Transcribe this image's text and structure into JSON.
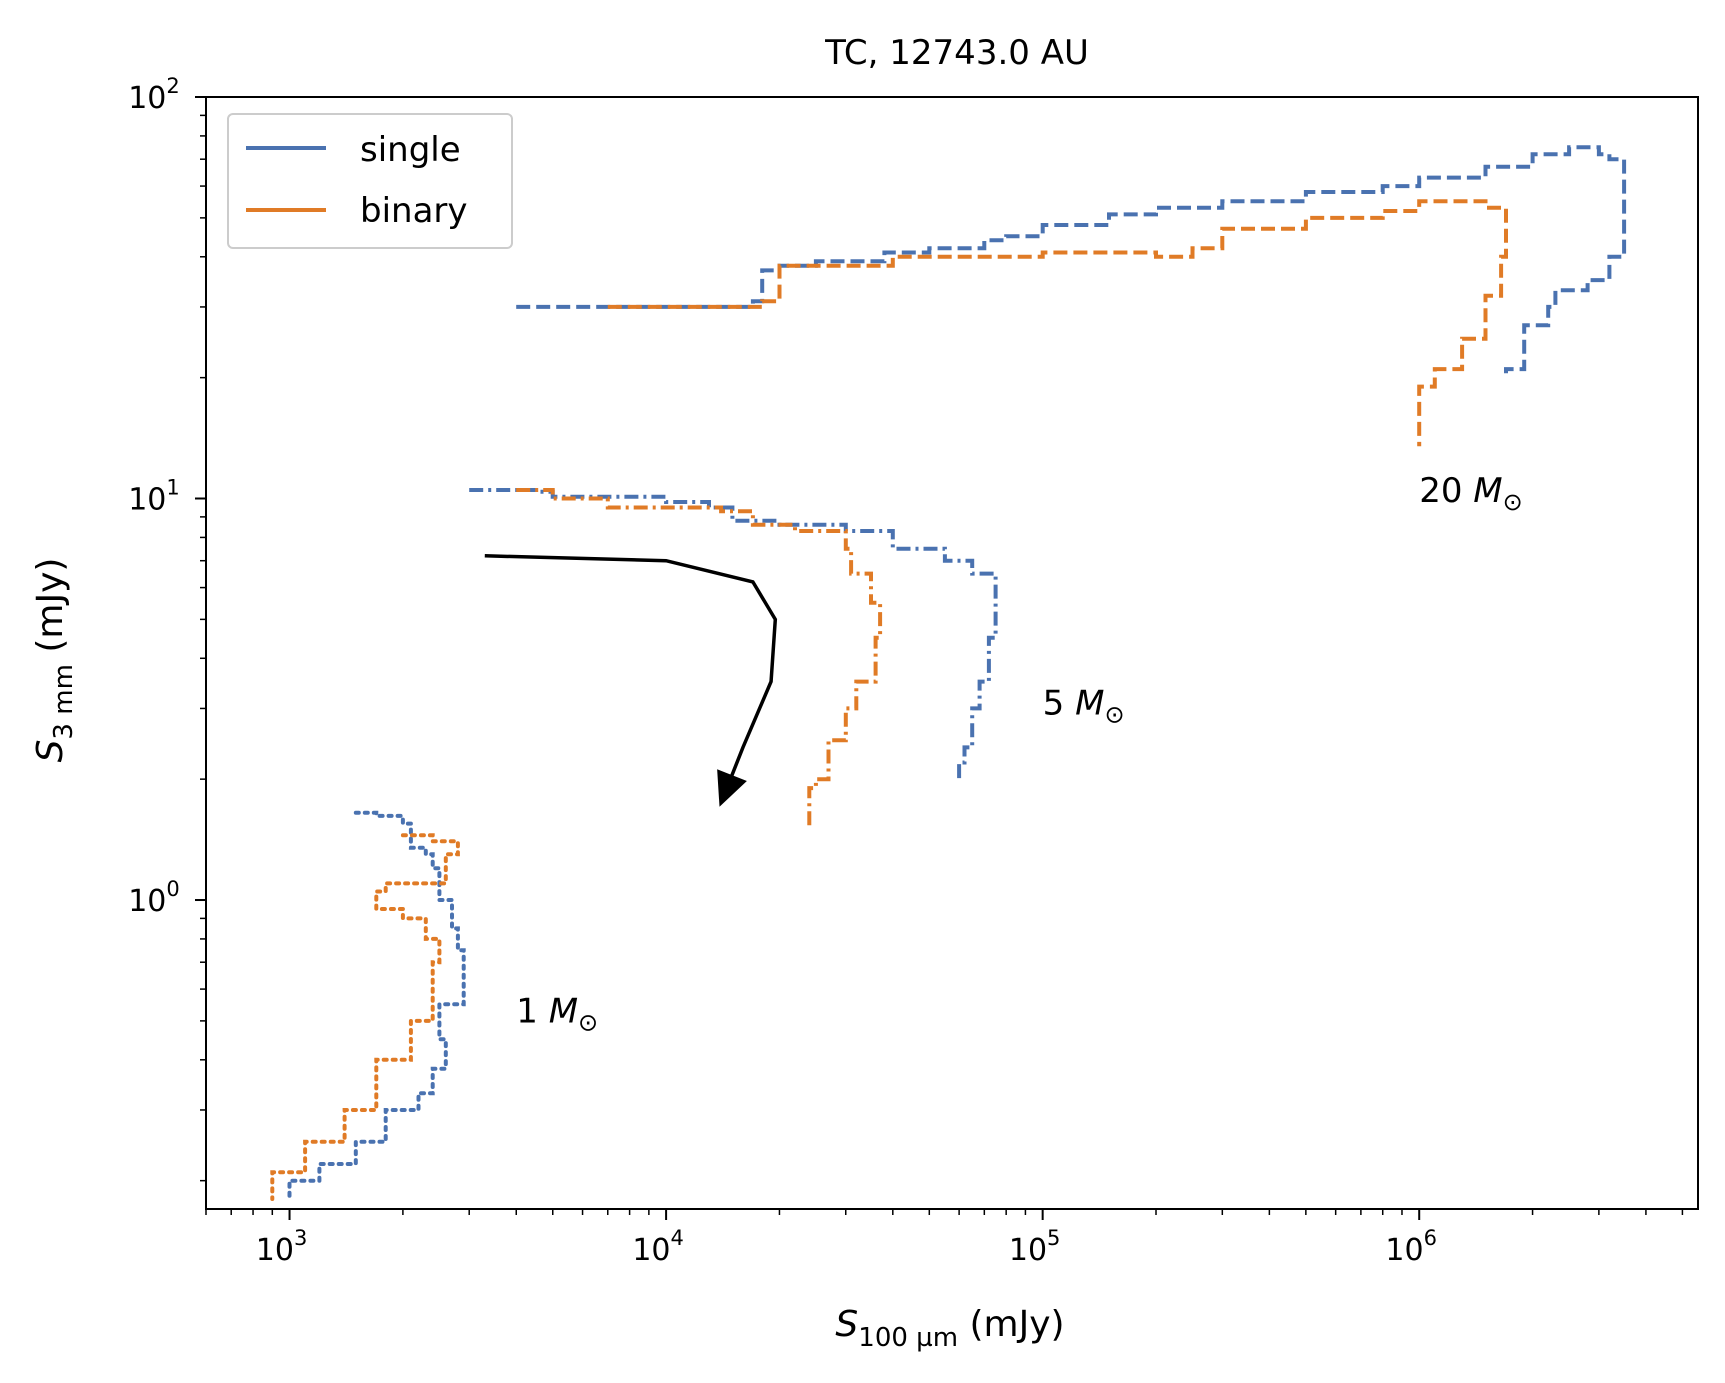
{
  "chart_data": {
    "type": "line",
    "title": "TC, 12743.0 AU",
    "xlabel": {
      "base": "S",
      "sub": "100 µm",
      "unit": " (mJy)"
    },
    "ylabel": {
      "base": "S",
      "sub": "3 mm",
      "unit": " (mJy)"
    },
    "x_scale": "log",
    "y_scale": "log",
    "xlim": [
      600,
      5500000
    ],
    "ylim": [
      0.17,
      100
    ],
    "x_major_ticks": [
      {
        "value": 1000,
        "label": "10",
        "exp": "3"
      },
      {
        "value": 10000,
        "label": "10",
        "exp": "4"
      },
      {
        "value": 100000,
        "label": "10",
        "exp": "5"
      },
      {
        "value": 1000000,
        "label": "10",
        "exp": "6"
      }
    ],
    "y_major_ticks": [
      {
        "value": 1,
        "label": "10",
        "exp": "0"
      },
      {
        "value": 10,
        "label": "10",
        "exp": "1"
      },
      {
        "value": 100,
        "label": "10",
        "exp": "2"
      }
    ],
    "grid": false,
    "legend": {
      "position": "top-left",
      "entries": [
        {
          "name": "single",
          "color": "#4a72b0"
        },
        {
          "name": "binary",
          "color": "#e07b26"
        }
      ]
    },
    "series": [
      {
        "name": "single",
        "group": "20 M☉",
        "color": "#4a72b0",
        "style": "dashed",
        "x": [
          4000,
          7000,
          10000,
          17000,
          18000,
          20000,
          25000,
          30000,
          38000,
          50000,
          70000,
          80000,
          100000,
          150000,
          200000,
          300000,
          500000,
          800000,
          1000000,
          1500000,
          2000000,
          2500000,
          3000000,
          3200000,
          3500000,
          3500000,
          3200000,
          2800000,
          2300000,
          2200000,
          1900000,
          1700000
        ],
        "y": [
          30,
          30,
          30,
          31,
          37,
          38,
          39,
          39,
          41,
          42,
          44,
          45,
          48,
          51,
          53,
          55,
          58,
          60,
          63,
          67,
          72,
          75,
          72,
          70,
          55,
          40,
          35,
          33,
          30,
          27,
          21,
          20.5
        ]
      },
      {
        "name": "binary",
        "group": "20 M☉",
        "color": "#e07b26",
        "style": "dashed",
        "x": [
          7000,
          10000,
          17000,
          18000,
          20000,
          30000,
          40000,
          60000,
          80000,
          100000,
          150000,
          200000,
          250000,
          300000,
          500000,
          800000,
          1000000,
          1200000,
          1500000,
          1700000,
          1700000,
          1650000,
          1500000,
          1300000,
          1100000,
          1000000,
          1000000
        ],
        "y": [
          30,
          30,
          30,
          31,
          38,
          38,
          40,
          40,
          40,
          41,
          41,
          40,
          42,
          47,
          50,
          52,
          55,
          55,
          53,
          50,
          40,
          32,
          25,
          21,
          19,
          16,
          13.5
        ]
      },
      {
        "name": "single",
        "group": "5 M☉",
        "color": "#4a72b0",
        "style": "dashdot",
        "x": [
          3000,
          4500,
          5000,
          8000,
          10000,
          13000,
          15000,
          20000,
          30000,
          40000,
          55000,
          65000,
          75000,
          75000,
          72000,
          68000,
          65000,
          62000,
          60000
        ],
        "y": [
          10.5,
          10.4,
          10.1,
          10.1,
          9.8,
          9.5,
          8.8,
          8.6,
          8.3,
          7.5,
          7.0,
          6.5,
          6.0,
          4.5,
          3.5,
          3.0,
          2.4,
          2.2,
          2.0
        ]
      },
      {
        "name": "binary",
        "group": "5 M☉",
        "color": "#e07b26",
        "style": "dashdot",
        "x": [
          4000,
          5000,
          7000,
          10000,
          14000,
          17000,
          22000,
          30000,
          31000,
          35000,
          37000,
          36000,
          32000,
          30000,
          27000,
          25000,
          24000,
          24000
        ],
        "y": [
          10.5,
          10.0,
          9.5,
          9.5,
          9.3,
          8.6,
          8.3,
          7.5,
          6.5,
          5.5,
          4.5,
          3.5,
          3.0,
          2.5,
          2.0,
          1.9,
          1.8,
          1.5
        ]
      },
      {
        "name": "single",
        "group": "1 M☉",
        "color": "#4a72b0",
        "style": "dotted",
        "x": [
          1500,
          1700,
          2000,
          2100,
          2300,
          2400,
          2500,
          2700,
          2800,
          2900,
          2900,
          2500,
          2600,
          2400,
          2200,
          1800,
          1500,
          1200,
          1000
        ],
        "y": [
          1.65,
          1.62,
          1.55,
          1.35,
          1.3,
          1.2,
          1.0,
          0.85,
          0.75,
          0.68,
          0.55,
          0.45,
          0.38,
          0.33,
          0.3,
          0.25,
          0.22,
          0.2,
          0.18
        ]
      },
      {
        "name": "binary",
        "group": "1 M☉",
        "color": "#e07b26",
        "style": "dotted",
        "x": [
          2000,
          2400,
          2800,
          2600,
          1800,
          1700,
          2000,
          2300,
          2500,
          2400,
          2100,
          1700,
          1400,
          1100,
          900
        ],
        "y": [
          1.45,
          1.4,
          1.3,
          1.1,
          1.05,
          0.95,
          0.9,
          0.8,
          0.7,
          0.5,
          0.4,
          0.3,
          0.25,
          0.21,
          0.18
        ]
      }
    ],
    "annotations": [
      {
        "text": "20",
        "sub": "M",
        "x": 1000000,
        "y": 10.5
      },
      {
        "text": "5",
        "sub": "M",
        "x": 100000,
        "y": 3.1
      },
      {
        "text": "1",
        "sub": "M",
        "x": 4000,
        "y": 0.53
      }
    ],
    "arrow": {
      "x": [
        3300,
        10000,
        17000,
        19500,
        19000,
        16000,
        14500
      ],
      "y": [
        7.2,
        7.0,
        6.2,
        5.0,
        3.5,
        2.4,
        1.9
      ]
    }
  }
}
